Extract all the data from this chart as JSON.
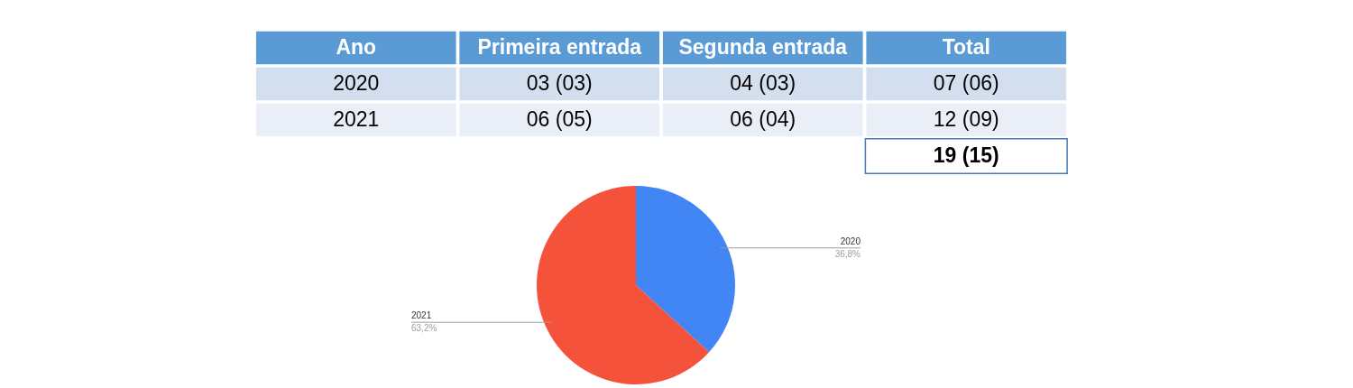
{
  "chart_data": [
    {
      "type": "other",
      "categories": [
        "Ano",
        "Primeira entrada",
        "Segunda entrada",
        "Total"
      ],
      "cell_labels": [
        [
          "2020",
          "03 (03)",
          "04 (03)",
          "07 (06)"
        ],
        [
          "2021",
          "06 (05)",
          "06 (04)",
          "12 (09)"
        ]
      ],
      "totals": [
        "19 (15)"
      ]
    },
    {
      "type": "pie",
      "categories": [
        "2020",
        "2021"
      ],
      "values": [
        36.8,
        63.2
      ],
      "colors": [
        "#4285f4",
        "#f4523b"
      ],
      "value_labels": [
        "36,8%",
        "63,2%"
      ]
    }
  ]
}
